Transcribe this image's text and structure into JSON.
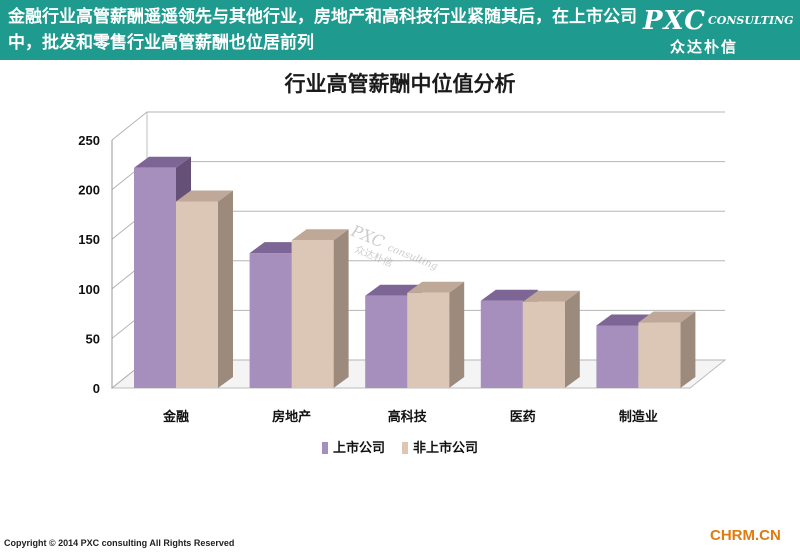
{
  "header": {
    "text": "金融行业高管薪酬遥遥领先与其他行业，房地产和高科技行业紧随其后，在上市公司中，批发和零售行业高管薪酬也位居前列",
    "logo_main": "PXC",
    "logo_sub": "CONSULTING",
    "logo_cn": "众达朴信"
  },
  "watermark": {
    "main": "PXC",
    "sub": "consulting",
    "cn": "众达朴信"
  },
  "footer": {
    "copyright": "Copyright © 2014  PXC consulting All Rights Reserved",
    "source": "CHRM.CN"
  },
  "colors": {
    "banner": "#1f9a8e",
    "listed_front": "#a68fbd",
    "listed_top": "#7d6596",
    "listed_side": "#655178",
    "unlisted_front": "#dcc6b6",
    "unlisted_top": "#bfa898",
    "unlisted_side": "#9c8a7c"
  },
  "chart_data": {
    "type": "bar",
    "title": "行业高管薪酬中位值分析",
    "categories": [
      "金融",
      "房地产",
      "高科技",
      "医药",
      "制造业"
    ],
    "series": [
      {
        "name": "上市公司",
        "values": [
          222,
          136,
          93,
          88,
          63
        ]
      },
      {
        "name": "非上市公司",
        "values": [
          188,
          149,
          96,
          87,
          66
        ]
      }
    ],
    "yticks": [
      0,
      50,
      100,
      150,
      200,
      250
    ],
    "ylim": [
      0,
      250
    ],
    "grid": true,
    "legend_position": "bottom",
    "three_d": true
  }
}
